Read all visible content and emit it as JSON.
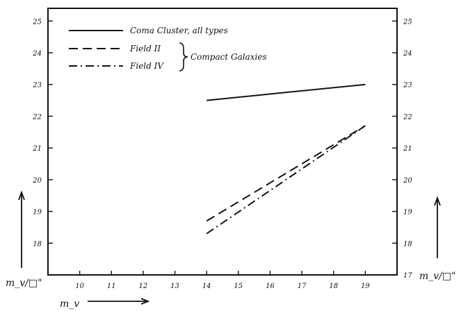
{
  "chart_data": {
    "type": "line",
    "xlabel": "m_v",
    "ylabel_left": "m_v/□\"",
    "ylabel_right": "m_v/□\"",
    "xlim": [
      9,
      20
    ],
    "ylim": [
      17,
      25.4
    ],
    "x_ticks": [
      10,
      11,
      12,
      13,
      14,
      15,
      16,
      17,
      18,
      19
    ],
    "x_tick_labels": [
      "10",
      "11",
      "12",
      "13",
      "14",
      "15",
      "16",
      "17",
      "18",
      "19"
    ],
    "y_ticks": [
      18,
      19,
      20,
      21,
      22,
      23,
      24,
      25
    ],
    "y_tick_labels": [
      "18",
      "19",
      "20",
      "21",
      "22",
      "23",
      "24",
      "25"
    ],
    "right_y_ticks": [
      17,
      18,
      19,
      20,
      21,
      22,
      23,
      24,
      25
    ],
    "right_y_tick_labels": [
      "17",
      "18",
      "19",
      "20",
      "21",
      "22",
      "23",
      "24",
      "25"
    ],
    "grid": false,
    "legend_placement": "top-left",
    "legend_group_label": "Compact Galaxies",
    "series": [
      {
        "name": "Coma Cluster, all types",
        "style": "solid",
        "x": [
          14,
          19
        ],
        "y": [
          22.5,
          23.0
        ]
      },
      {
        "name": "Field II",
        "style": "dashed",
        "x": [
          14,
          19
        ],
        "y": [
          18.7,
          21.7
        ]
      },
      {
        "name": "Field IV",
        "style": "dashdot",
        "x": [
          14,
          19
        ],
        "y": [
          18.3,
          21.7
        ]
      }
    ]
  }
}
